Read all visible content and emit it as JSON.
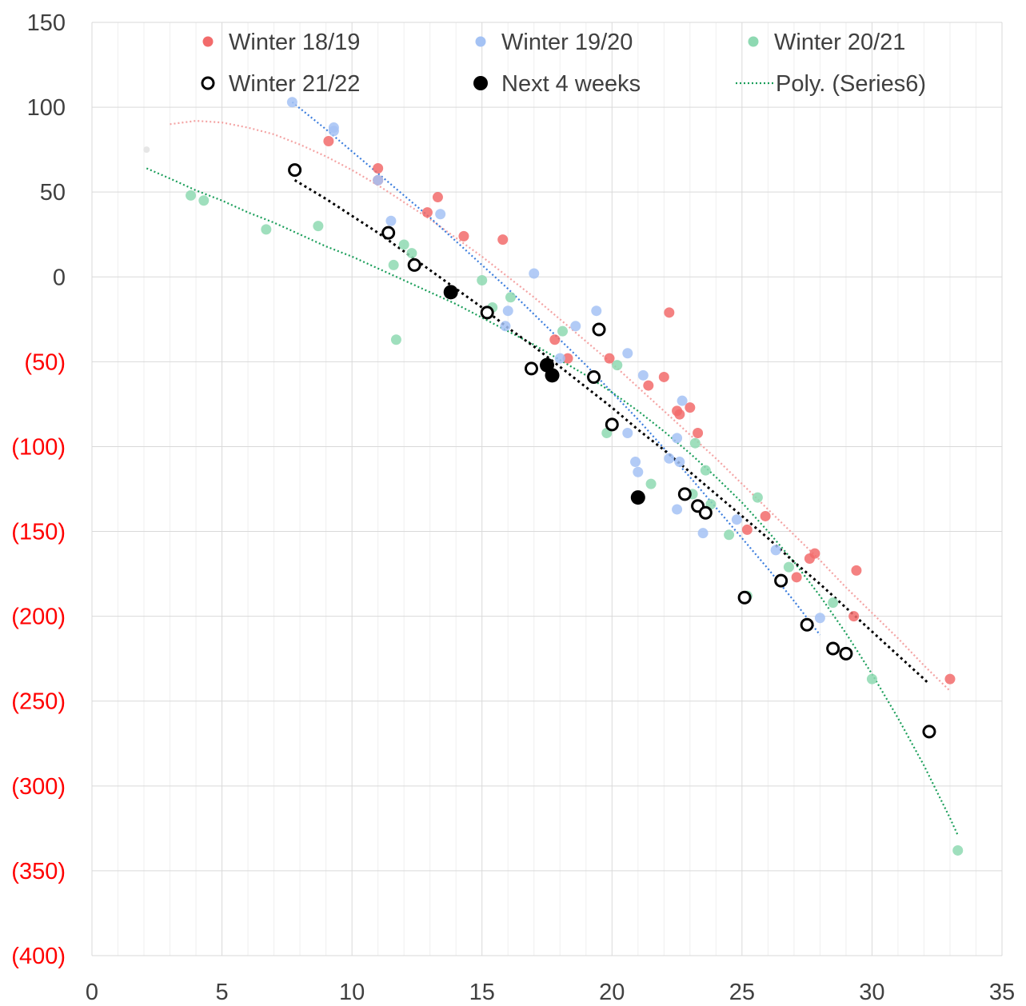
{
  "chart_data": {
    "type": "scatter",
    "xlim": [
      0,
      35
    ],
    "ylim": [
      -400,
      150
    ],
    "x_ticks": [
      0,
      5,
      10,
      15,
      20,
      25,
      30,
      35
    ],
    "x_tick_labels": [
      "0",
      "5",
      "10",
      "15",
      "20",
      "25",
      "30",
      "35"
    ],
    "y_ticks": [
      150,
      100,
      50,
      0,
      -50,
      -100,
      -150,
      -200,
      -250,
      -300,
      -350,
      -400
    ],
    "y_tick_labels": [
      "150",
      "100",
      "50",
      "0",
      "(50)",
      "(100)",
      "(150)",
      "(200)",
      "(250)",
      "(300)",
      "(350)",
      "(400)"
    ],
    "negative_tick_color": "#ff0000",
    "positive_tick_color": "#404040",
    "grid": true,
    "minor_vertical_grid": true,
    "legend_position": "top",
    "legend": [
      "Winter 18/19",
      "Winter 19/20",
      "Winter 20/21",
      "Winter 21/22",
      "Next 4 weeks",
      "Poly. (Series6)"
    ],
    "series": [
      {
        "name": "Winter 18/19",
        "color": "#f26b6b",
        "marker": "filled-circle",
        "points": [
          [
            9.1,
            80
          ],
          [
            11.0,
            64
          ],
          [
            11.0,
            57
          ],
          [
            13.3,
            47
          ],
          [
            12.9,
            38
          ],
          [
            14.3,
            24
          ],
          [
            15.8,
            22
          ],
          [
            17.8,
            -37
          ],
          [
            18.3,
            -48
          ],
          [
            19.9,
            -48
          ],
          [
            21.4,
            -64
          ],
          [
            22.0,
            -59
          ],
          [
            22.2,
            -21
          ],
          [
            22.5,
            -79
          ],
          [
            22.6,
            -81
          ],
          [
            23.0,
            -77
          ],
          [
            23.3,
            -92
          ],
          [
            25.2,
            -149
          ],
          [
            25.9,
            -141
          ],
          [
            27.1,
            -177
          ],
          [
            27.6,
            -166
          ],
          [
            27.8,
            -163
          ],
          [
            29.3,
            -200
          ],
          [
            29.4,
            -173
          ],
          [
            33.0,
            -237
          ]
        ]
      },
      {
        "name": "Winter 19/20",
        "color": "#a4c2f4",
        "marker": "filled-circle",
        "points": [
          [
            7.7,
            103
          ],
          [
            9.3,
            88
          ],
          [
            9.3,
            86
          ],
          [
            11.0,
            57
          ],
          [
            11.5,
            33
          ],
          [
            13.4,
            37
          ],
          [
            15.9,
            -29
          ],
          [
            16.0,
            -20
          ],
          [
            17.0,
            2
          ],
          [
            18.0,
            -48
          ],
          [
            18.6,
            -29
          ],
          [
            19.4,
            -20
          ],
          [
            20.6,
            -45
          ],
          [
            20.6,
            -92
          ],
          [
            20.9,
            -109
          ],
          [
            21.0,
            -115
          ],
          [
            21.2,
            -58
          ],
          [
            22.2,
            -107
          ],
          [
            22.5,
            -137
          ],
          [
            22.5,
            -95
          ],
          [
            22.6,
            -109
          ],
          [
            22.7,
            -73
          ],
          [
            23.5,
            -151
          ],
          [
            24.8,
            -143
          ],
          [
            26.3,
            -161
          ],
          [
            28.0,
            -201
          ]
        ]
      },
      {
        "name": "Winter 20/21",
        "color": "#8ed9b2",
        "marker": "filled-circle",
        "points": [
          [
            3.8,
            48
          ],
          [
            4.3,
            45
          ],
          [
            6.7,
            28
          ],
          [
            8.7,
            30
          ],
          [
            11.6,
            7
          ],
          [
            11.7,
            -37
          ],
          [
            12.0,
            19
          ],
          [
            12.3,
            14
          ],
          [
            15.0,
            -2
          ],
          [
            15.4,
            -18
          ],
          [
            16.1,
            -12
          ],
          [
            18.1,
            -32
          ],
          [
            19.8,
            -92
          ],
          [
            20.2,
            -52
          ],
          [
            21.5,
            -122
          ],
          [
            23.1,
            -128
          ],
          [
            23.2,
            -98
          ],
          [
            23.6,
            -114
          ],
          [
            23.8,
            -134
          ],
          [
            24.5,
            -152
          ],
          [
            25.2,
            -188
          ],
          [
            25.6,
            -130
          ],
          [
            26.8,
            -171
          ],
          [
            28.5,
            -192
          ],
          [
            30.0,
            -237
          ],
          [
            33.3,
            -338
          ]
        ]
      },
      {
        "name": "Winter 21/22",
        "color": "#000000",
        "marker": "open-circle",
        "points": [
          [
            7.8,
            63
          ],
          [
            11.4,
            26
          ],
          [
            12.4,
            7
          ],
          [
            15.2,
            -21
          ],
          [
            16.9,
            -54
          ],
          [
            19.3,
            -59
          ],
          [
            19.5,
            -31
          ],
          [
            20.0,
            -87
          ],
          [
            22.8,
            -128
          ],
          [
            23.3,
            -135
          ],
          [
            23.6,
            -139
          ],
          [
            25.1,
            -189
          ],
          [
            26.5,
            -179
          ],
          [
            27.5,
            -205
          ],
          [
            28.5,
            -219
          ],
          [
            29.0,
            -222
          ],
          [
            32.2,
            -268
          ]
        ]
      },
      {
        "name": "Next 4 weeks",
        "color": "#000000",
        "marker": "filled-circle",
        "points": [
          [
            13.8,
            -9
          ],
          [
            17.5,
            -52
          ],
          [
            17.7,
            -58
          ],
          [
            21.0,
            -130
          ]
        ]
      }
    ],
    "trendlines": [
      {
        "series": "Winter 18/19",
        "color": "#f4a3a3",
        "x_range": [
          3.0,
          33.0
        ],
        "points": [
          [
            3,
            90
          ],
          [
            4,
            92
          ],
          [
            5,
            91
          ],
          [
            6,
            88
          ],
          [
            7,
            84
          ],
          [
            8,
            78
          ],
          [
            9,
            71
          ],
          [
            10,
            63
          ],
          [
            11,
            54
          ],
          [
            12,
            44
          ],
          [
            13,
            34
          ],
          [
            14,
            23
          ],
          [
            15,
            12
          ],
          [
            16,
            0
          ],
          [
            17,
            -12
          ],
          [
            18,
            -25
          ],
          [
            19,
            -38
          ],
          [
            20,
            -51
          ],
          [
            21,
            -65
          ],
          [
            22,
            -79
          ],
          [
            23,
            -93
          ],
          [
            24,
            -107
          ],
          [
            25,
            -122
          ],
          [
            26,
            -137
          ],
          [
            27,
            -152
          ],
          [
            28,
            -167
          ],
          [
            29,
            -183
          ],
          [
            30,
            -198
          ],
          [
            31,
            -213
          ],
          [
            32,
            -229
          ],
          [
            33,
            -244
          ]
        ]
      },
      {
        "series": "Winter 19/20",
        "color": "#3b7ddd",
        "x_range": [
          7.7,
          28.0
        ],
        "points": [
          [
            7.7,
            103
          ],
          [
            9,
            87
          ],
          [
            10,
            74
          ],
          [
            11,
            61
          ],
          [
            12,
            48
          ],
          [
            13,
            35
          ],
          [
            14,
            21
          ],
          [
            15,
            7
          ],
          [
            16,
            -7
          ],
          [
            17,
            -22
          ],
          [
            18,
            -37
          ],
          [
            19,
            -52
          ],
          [
            20,
            -68
          ],
          [
            21,
            -84
          ],
          [
            22,
            -101
          ],
          [
            23,
            -118
          ],
          [
            24,
            -136
          ],
          [
            25,
            -154
          ],
          [
            26,
            -172
          ],
          [
            27,
            -191
          ],
          [
            28,
            -211
          ]
        ]
      },
      {
        "series": "Winter 20/21",
        "color": "#1a9e5a",
        "x_range": [
          2.1,
          33.3
        ],
        "points": [
          [
            2.1,
            64
          ],
          [
            3,
            58
          ],
          [
            4,
            51
          ],
          [
            5,
            45
          ],
          [
            6,
            38
          ],
          [
            7,
            32
          ],
          [
            8,
            25
          ],
          [
            9,
            18
          ],
          [
            10,
            12
          ],
          [
            11,
            5
          ],
          [
            12,
            -2
          ],
          [
            13,
            -9
          ],
          [
            14,
            -16
          ],
          [
            15,
            -24
          ],
          [
            16,
            -32
          ],
          [
            17,
            -40
          ],
          [
            18,
            -49
          ],
          [
            19,
            -58
          ],
          [
            20,
            -68
          ],
          [
            21,
            -79
          ],
          [
            22,
            -91
          ],
          [
            23,
            -104
          ],
          [
            24,
            -118
          ],
          [
            25,
            -133
          ],
          [
            26,
            -150
          ],
          [
            27,
            -168
          ],
          [
            28,
            -188
          ],
          [
            29,
            -210
          ],
          [
            30,
            -234
          ],
          [
            31,
            -260
          ],
          [
            32,
            -288
          ],
          [
            33,
            -319
          ],
          [
            33.3,
            -329
          ]
        ]
      },
      {
        "series": "Winter 21/22",
        "color": "#000000",
        "x_range": [
          7.8,
          32.2
        ],
        "points": [
          [
            7.8,
            57
          ],
          [
            9,
            46
          ],
          [
            10,
            36
          ],
          [
            11,
            26
          ],
          [
            12,
            15
          ],
          [
            13,
            4
          ],
          [
            14,
            -7
          ],
          [
            15,
            -18
          ],
          [
            16,
            -30
          ],
          [
            17,
            -41
          ],
          [
            18,
            -53
          ],
          [
            19,
            -65
          ],
          [
            20,
            -77
          ],
          [
            21,
            -90
          ],
          [
            22,
            -102
          ],
          [
            23,
            -115
          ],
          [
            24,
            -128
          ],
          [
            25,
            -141
          ],
          [
            26,
            -154
          ],
          [
            27,
            -168
          ],
          [
            28,
            -181
          ],
          [
            29,
            -195
          ],
          [
            30,
            -209
          ],
          [
            31,
            -223
          ],
          [
            32,
            -237
          ],
          [
            32.2,
            -240
          ]
        ]
      }
    ],
    "faint_marker": {
      "x": 2.1,
      "y": 75,
      "color": "#e6e6e6"
    }
  }
}
